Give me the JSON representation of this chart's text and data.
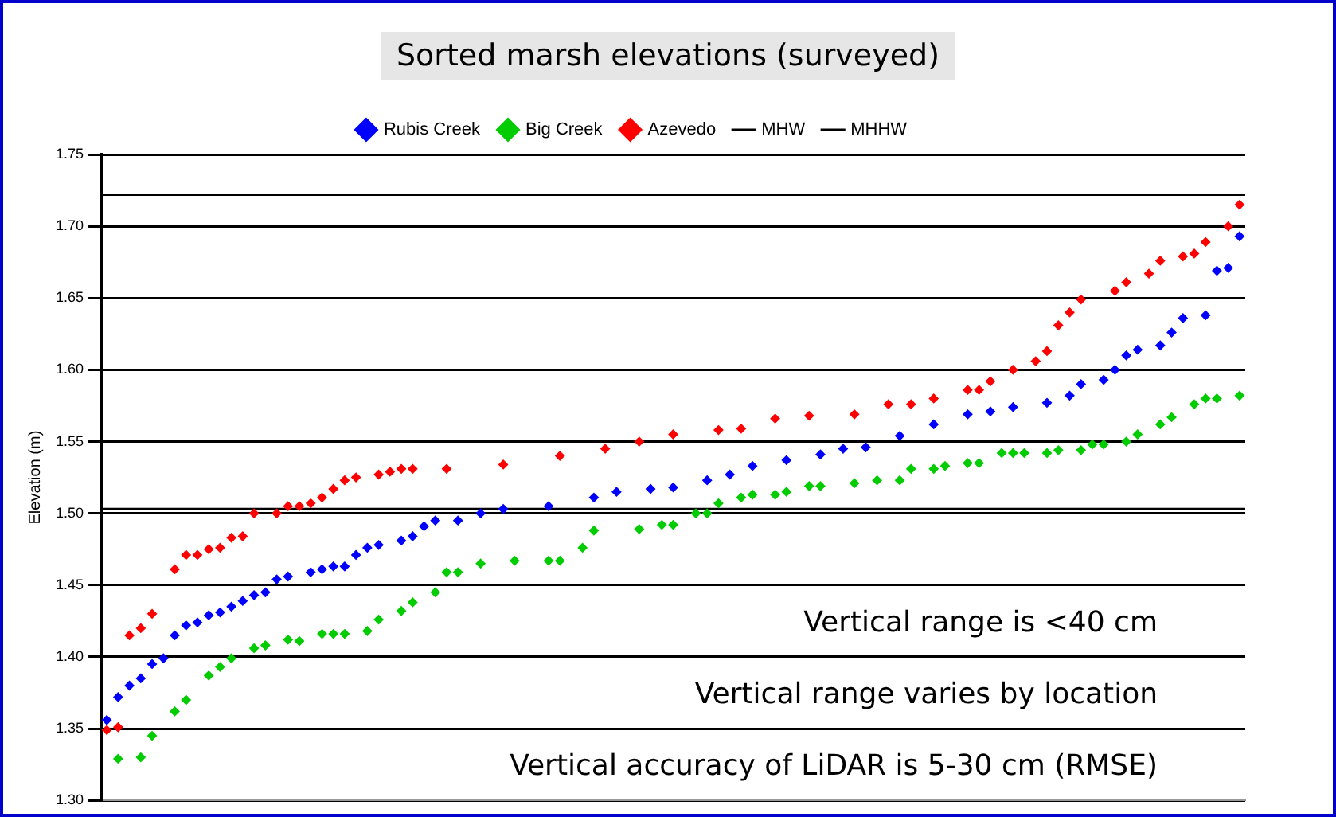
{
  "chart_data": {
    "type": "scatter",
    "title": "Sorted marsh elevations (surveyed)",
    "ylabel": "Elevation (m)",
    "categories": [
      null,
      null,
      null,
      null,
      null,
      null,
      null,
      null,
      null,
      null,
      null,
      null,
      null,
      null,
      null,
      null,
      null,
      null,
      null,
      null,
      null,
      null,
      null,
      null,
      null,
      null,
      null,
      null,
      null,
      null,
      null,
      null,
      null,
      null,
      null,
      null,
      null,
      null,
      null,
      null,
      null,
      null,
      null,
      null,
      null,
      null,
      null,
      null,
      null,
      null,
      null,
      null,
      null,
      null,
      null,
      null,
      null,
      null,
      null,
      null,
      null,
      null,
      null,
      null,
      null,
      null,
      null,
      null,
      null,
      null,
      null,
      null,
      null,
      null,
      null,
      null,
      null,
      null,
      null,
      null,
      null,
      null,
      null,
      null,
      null,
      null,
      null,
      null,
      null,
      null,
      null,
      null,
      null,
      null,
      null,
      null,
      null,
      null,
      null,
      null,
      null
    ],
    "ylim": [
      1.3,
      1.75
    ],
    "yticks": [
      {
        "value": 1.3,
        "label": "1.30"
      },
      {
        "value": 1.35,
        "label": "1.35"
      },
      {
        "value": 1.4,
        "label": "1.40"
      },
      {
        "value": 1.45,
        "label": "1.45"
      },
      {
        "value": 1.5,
        "label": "1.50"
      },
      {
        "value": 1.55,
        "label": "1.55"
      },
      {
        "value": 1.6,
        "label": "1.60"
      },
      {
        "value": 1.65,
        "label": "1.65"
      },
      {
        "value": 1.7,
        "label": "1.70"
      },
      {
        "value": 1.75,
        "label": "1.75"
      }
    ],
    "tick_labels": "y",
    "grid": "y",
    "legend": "top",
    "marker": "diamond",
    "series": [
      {
        "name": "Rubis Creek",
        "color": "#0000ff",
        "values": [
          1.356,
          1.372,
          1.38,
          1.385,
          1.395,
          1.399,
          1.415,
          1.422,
          1.424,
          1.429,
          1.431,
          1.435,
          1.439,
          1.443,
          1.445,
          1.454,
          1.456,
          null,
          1.459,
          1.461,
          1.463,
          1.463,
          1.471,
          1.476,
          1.478,
          null,
          1.481,
          1.484,
          1.491,
          1.495,
          null,
          1.495,
          null,
          1.5,
          null,
          1.503,
          null,
          null,
          null,
          1.505,
          null,
          null,
          null,
          1.511,
          null,
          1.515,
          null,
          null,
          1.517,
          null,
          1.518,
          null,
          null,
          1.523,
          null,
          1.527,
          null,
          1.533,
          null,
          null,
          1.537,
          null,
          null,
          1.541,
          null,
          1.545,
          null,
          1.546,
          null,
          null,
          1.554,
          null,
          null,
          1.562,
          null,
          null,
          1.569,
          null,
          1.571,
          null,
          1.574,
          null,
          null,
          1.577,
          null,
          1.582,
          1.59,
          null,
          1.593,
          1.6,
          1.61,
          1.614,
          null,
          1.617,
          1.626,
          1.636,
          null,
          1.638,
          1.669,
          1.671,
          1.693
        ]
      },
      {
        "name": "Big Creek",
        "color": "#00cc00",
        "values": [
          null,
          1.329,
          null,
          1.33,
          1.345,
          null,
          1.362,
          1.37,
          null,
          1.387,
          1.393,
          1.399,
          null,
          1.406,
          1.408,
          null,
          1.412,
          1.411,
          null,
          1.416,
          1.416,
          1.416,
          null,
          1.418,
          1.426,
          null,
          1.432,
          1.438,
          null,
          1.445,
          1.459,
          1.459,
          null,
          1.465,
          null,
          null,
          1.467,
          null,
          null,
          1.467,
          1.467,
          null,
          1.476,
          1.488,
          null,
          null,
          null,
          1.489,
          null,
          1.492,
          1.492,
          null,
          1.5,
          1.5,
          1.507,
          null,
          1.511,
          1.513,
          null,
          1.513,
          1.515,
          null,
          1.519,
          1.519,
          null,
          null,
          1.521,
          null,
          1.523,
          null,
          1.523,
          1.531,
          null,
          1.531,
          1.533,
          null,
          1.535,
          1.535,
          null,
          1.542,
          1.542,
          1.542,
          null,
          1.542,
          1.544,
          null,
          1.544,
          1.548,
          1.548,
          null,
          1.55,
          1.555,
          null,
          1.562,
          1.567,
          null,
          1.576,
          1.58,
          1.58,
          null,
          1.582
        ]
      },
      {
        "name": "Azevedo",
        "color": "#ff0000",
        "values": [
          1.349,
          1.351,
          1.415,
          1.42,
          1.43,
          null,
          1.461,
          1.471,
          1.471,
          1.475,
          1.476,
          1.483,
          1.484,
          1.5,
          null,
          1.5,
          1.505,
          1.505,
          1.507,
          1.511,
          1.517,
          1.523,
          1.525,
          null,
          1.527,
          1.529,
          1.531,
          1.531,
          null,
          null,
          1.531,
          null,
          null,
          null,
          null,
          1.534,
          null,
          null,
          null,
          null,
          1.54,
          null,
          null,
          null,
          1.545,
          null,
          null,
          1.55,
          null,
          null,
          1.555,
          null,
          null,
          null,
          1.558,
          null,
          1.559,
          null,
          null,
          1.566,
          null,
          null,
          1.568,
          null,
          null,
          null,
          1.569,
          null,
          null,
          1.576,
          null,
          1.576,
          null,
          1.58,
          null,
          null,
          1.586,
          1.586,
          1.592,
          null,
          1.6,
          null,
          1.606,
          1.613,
          1.631,
          1.64,
          1.649,
          null,
          null,
          1.655,
          1.661,
          null,
          1.667,
          1.676,
          null,
          1.679,
          1.681,
          1.689,
          null,
          1.7,
          1.715
        ]
      }
    ],
    "ref_lines": [
      {
        "axis": "y",
        "value": 1.503,
        "label": "MHW",
        "color": "#000000"
      },
      {
        "axis": "y",
        "value": 1.722,
        "label": "MHHW",
        "color": "#000000"
      }
    ],
    "annotations": [
      "Vertical range is <40 cm",
      "Vertical range varies by location",
      "Vertical accuracy of LiDAR is 5-30 cm (RMSE)"
    ]
  }
}
